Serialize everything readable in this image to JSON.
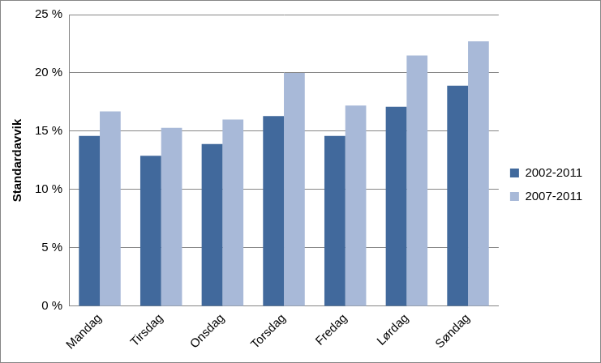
{
  "chart_data": {
    "type": "bar",
    "categories": [
      "Mandag",
      "Tirsdag",
      "Onsdag",
      "Torsdag",
      "Fredag",
      "Lørdag",
      "Søndag"
    ],
    "series": [
      {
        "name": "2002-2011",
        "color": "#41699c",
        "values": [
          14.6,
          12.9,
          13.9,
          16.3,
          14.6,
          17.1,
          18.9
        ]
      },
      {
        "name": "2007-2011",
        "color": "#a8b9d8",
        "values": [
          16.7,
          15.3,
          16.0,
          20.0,
          17.2,
          21.5,
          22.7
        ]
      }
    ],
    "ylabel": "Standardavvik",
    "ylim": [
      0,
      25
    ],
    "yticks": [
      {
        "value": 0,
        "label": "0 %"
      },
      {
        "value": 5,
        "label": "5 %"
      },
      {
        "value": 10,
        "label": "10 %"
      },
      {
        "value": 15,
        "label": "15 %"
      },
      {
        "value": 20,
        "label": "20 %"
      },
      {
        "value": 25,
        "label": "25 %"
      }
    ],
    "grid": true,
    "legend": "right"
  }
}
